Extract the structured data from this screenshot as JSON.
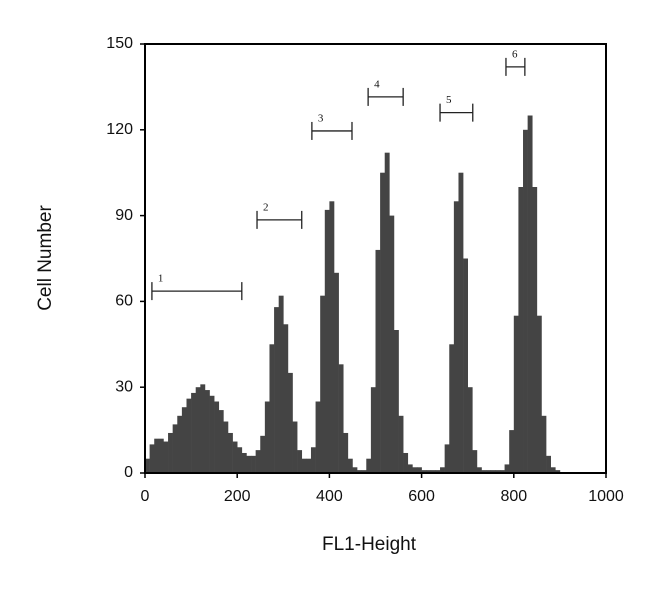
{
  "chart_data": {
    "type": "histogram",
    "xlabel": "FL1-Height",
    "ylabel": "Cell Number",
    "bins": [
      0,
      10,
      20,
      30,
      40,
      50,
      60,
      70,
      80,
      90,
      100,
      110,
      120,
      130,
      140,
      150,
      160,
      170,
      180,
      190,
      200,
      210,
      220,
      230,
      240,
      250,
      260,
      270,
      280,
      290,
      300,
      310,
      320,
      330,
      340,
      350,
      360,
      370,
      380,
      390,
      400,
      410,
      420,
      430,
      440,
      450,
      460,
      470,
      480,
      490,
      500,
      510,
      520,
      530,
      540,
      550,
      560,
      570,
      580,
      590,
      600,
      610,
      620,
      630,
      640,
      650,
      660,
      670,
      680,
      690,
      700,
      710,
      720,
      730,
      740,
      750,
      760,
      770,
      780,
      790,
      800,
      810,
      820,
      830,
      840,
      850,
      860,
      870,
      880,
      890,
      900,
      910
    ],
    "values": [
      5,
      10,
      12,
      12,
      11,
      14,
      17,
      20,
      23,
      26,
      28,
      30,
      31,
      29,
      27,
      25,
      22,
      18,
      14,
      11,
      9,
      7,
      6,
      6,
      8,
      13,
      25,
      45,
      58,
      62,
      52,
      35,
      18,
      8,
      5,
      5,
      9,
      25,
      62,
      92,
      95,
      70,
      38,
      14,
      5,
      2,
      1,
      1,
      5,
      30,
      78,
      105,
      112,
      90,
      50,
      20,
      7,
      3,
      2,
      2,
      1,
      1,
      1,
      1,
      2,
      10,
      45,
      95,
      105,
      75,
      30,
      8,
      2,
      1,
      1,
      1,
      1,
      1,
      3,
      15,
      55,
      100,
      120,
      125,
      100,
      55,
      20,
      6,
      2,
      1,
      0
    ],
    "color": "#444444",
    "xlim": [
      0,
      1000
    ],
    "xticks": [
      0,
      200,
      400,
      600,
      800,
      1000
    ],
    "ylim": [
      0,
      150
    ],
    "yticks": [
      0,
      30,
      60,
      90,
      120,
      150
    ],
    "gates": [
      {
        "label": "1",
        "range": [
          15,
          210
        ],
        "y": 63.6
      },
      {
        "label": "2",
        "range": [
          243,
          340
        ],
        "y": 88.5
      },
      {
        "label": "3",
        "range": [
          362,
          449
        ],
        "y": 119.6
      },
      {
        "label": "4",
        "range": [
          484,
          560
        ],
        "y": 131.5
      },
      {
        "label": "5",
        "range": [
          640,
          711
        ],
        "y": 126
      },
      {
        "label": "6",
        "range": [
          783,
          824
        ],
        "y": 142
      }
    ]
  }
}
